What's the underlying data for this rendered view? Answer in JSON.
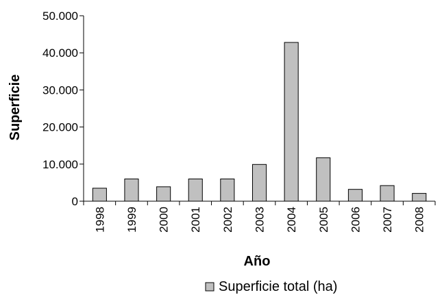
{
  "chart_data": {
    "type": "bar",
    "categories": [
      "1998",
      "1999",
      "2000",
      "2001",
      "2002",
      "2003",
      "2004",
      "2005",
      "2006",
      "2007",
      "2008"
    ],
    "series": [
      {
        "name": "Superficie total (ha)",
        "values": [
          3500,
          6000,
          3900,
          6000,
          6000,
          9900,
          42800,
          11700,
          3200,
          4200,
          2100
        ]
      }
    ],
    "xlabel": "Año",
    "ylabel": "Superficie",
    "ylim": [
      0,
      50000
    ],
    "yticks": [
      0,
      10000,
      20000,
      30000,
      40000,
      50000
    ],
    "ytick_labels": [
      "0",
      "10.000",
      "20.000",
      "30.000",
      "40.000",
      "50.000"
    ],
    "grid": false,
    "legend": "bottom",
    "colors": {
      "bar_fill": "#c0c0c0",
      "bar_stroke": "#000000"
    }
  }
}
